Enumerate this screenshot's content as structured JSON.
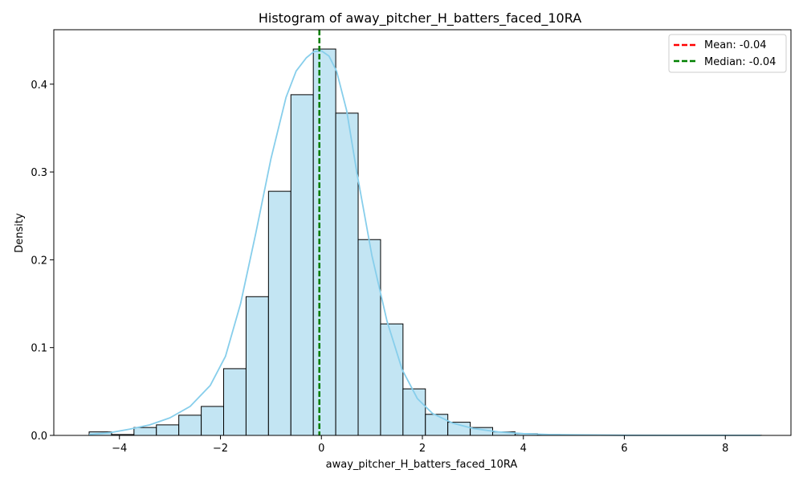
{
  "chart_data": {
    "type": "bar",
    "title": "Histogram of away_pitcher_H_batters_faced_10RA",
    "xlabel": "away_pitcher_H_batters_faced_10RA",
    "ylabel": "Density",
    "xlim": [
      -5.3,
      9.3
    ],
    "ylim": [
      0,
      0.462
    ],
    "xticks": [
      -4,
      -2,
      0,
      2,
      4,
      6,
      8
    ],
    "yticks": [
      0.0,
      0.1,
      0.2,
      0.3,
      0.4
    ],
    "ytick_labels": [
      "0.0",
      "0.1",
      "0.2",
      "0.3",
      "0.4"
    ],
    "xtick_labels": [
      "−4",
      "−2",
      "0",
      "2",
      "4",
      "6",
      "8"
    ],
    "grid": false,
    "legend_position": "top-right",
    "bins": {
      "start": -4.6,
      "width": 0.444,
      "values": [
        0.004,
        0.001,
        0.009,
        0.012,
        0.023,
        0.033,
        0.076,
        0.158,
        0.278,
        0.388,
        0.44,
        0.367,
        0.223,
        0.127,
        0.053,
        0.024,
        0.015,
        0.009,
        0.004,
        0.002,
        0.001,
        0.0007,
        0.0004,
        0.0003,
        0.0002,
        0.0002,
        0.0001,
        0.0001,
        0.0001,
        0.0001
      ]
    },
    "kde": {
      "x": [
        -4.6,
        -4.2,
        -3.8,
        -3.4,
        -3.0,
        -2.6,
        -2.2,
        -1.9,
        -1.6,
        -1.3,
        -1.0,
        -0.7,
        -0.5,
        -0.3,
        -0.15,
        0.0,
        0.15,
        0.3,
        0.5,
        0.7,
        1.0,
        1.3,
        1.6,
        1.9,
        2.2,
        2.6,
        3.0,
        3.5,
        4.0,
        4.5,
        5.0,
        6.0,
        7.0,
        8.0,
        8.7
      ],
      "y": [
        0.001,
        0.003,
        0.007,
        0.012,
        0.02,
        0.033,
        0.057,
        0.09,
        0.15,
        0.23,
        0.315,
        0.385,
        0.415,
        0.43,
        0.437,
        0.438,
        0.432,
        0.415,
        0.37,
        0.3,
        0.205,
        0.13,
        0.075,
        0.042,
        0.025,
        0.014,
        0.008,
        0.004,
        0.002,
        0.001,
        0.0006,
        0.0002,
        0.0001,
        0.0001,
        0.0001
      ]
    },
    "mean": -0.04,
    "median": -0.04,
    "series": [
      {
        "name": "Mean: -0.04",
        "color": "#ff0000",
        "style": "dashed"
      },
      {
        "name": "Median: -0.04",
        "color": "#008000",
        "style": "dashed"
      }
    ],
    "colors": {
      "bar_fill": "#c3e5f3",
      "bar_edge": "#000000",
      "kde": "#87ceeb",
      "mean": "#ff0000",
      "median": "#008000"
    }
  }
}
